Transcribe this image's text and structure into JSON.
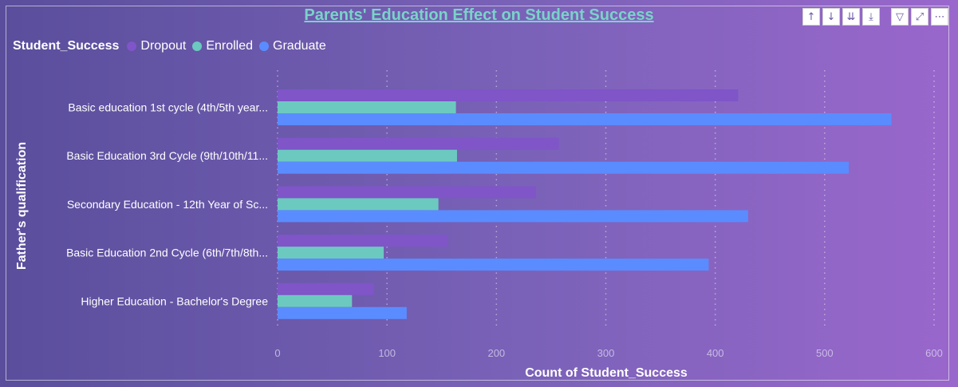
{
  "title": "Parents' Education Effect on Student Success",
  "toolbar": {
    "icons": [
      "sort-ascending-icon",
      "sort-descending-icon",
      "expand-all-icon",
      "drill-down-icon",
      "filter-icon",
      "focus-mode-icon",
      "more-options-icon"
    ],
    "glyphs": [
      "↑",
      "↓",
      "⇊",
      "⤓",
      "▽",
      "⤢",
      "⋯"
    ]
  },
  "legend": {
    "title": "Student_Success",
    "items": [
      "Dropout",
      "Enrolled",
      "Graduate"
    ]
  },
  "colors": {
    "Dropout": "#7f55c8",
    "Enrolled": "#6cc9c0",
    "Graduate": "#5a8cff"
  },
  "chart_data": {
    "type": "bar",
    "orientation": "horizontal",
    "title": "Parents' Education Effect on Student Success",
    "xlabel": "Count of Student_Success",
    "ylabel": "Father's qualification",
    "xlim": [
      0,
      600
    ],
    "xticks": [
      0,
      100,
      200,
      300,
      400,
      500,
      600
    ],
    "grid": "vertical-dotted",
    "legend_position": "top-left",
    "categories": [
      "Basic education 1st cycle (4th/5th year...",
      "Basic Education 3rd Cycle (9th/10th/11...",
      "Secondary Education - 12th Year of Sc...",
      "Basic Education 2nd Cycle (6th/7th/8th...",
      "Higher Education - Bachelor's Degree"
    ],
    "series": [
      {
        "name": "Dropout",
        "values": [
          421,
          257,
          236,
          156,
          88
        ]
      },
      {
        "name": "Enrolled",
        "values": [
          163,
          164,
          147,
          97,
          68
        ]
      },
      {
        "name": "Graduate",
        "values": [
          561,
          522,
          430,
          394,
          118
        ]
      }
    ]
  }
}
